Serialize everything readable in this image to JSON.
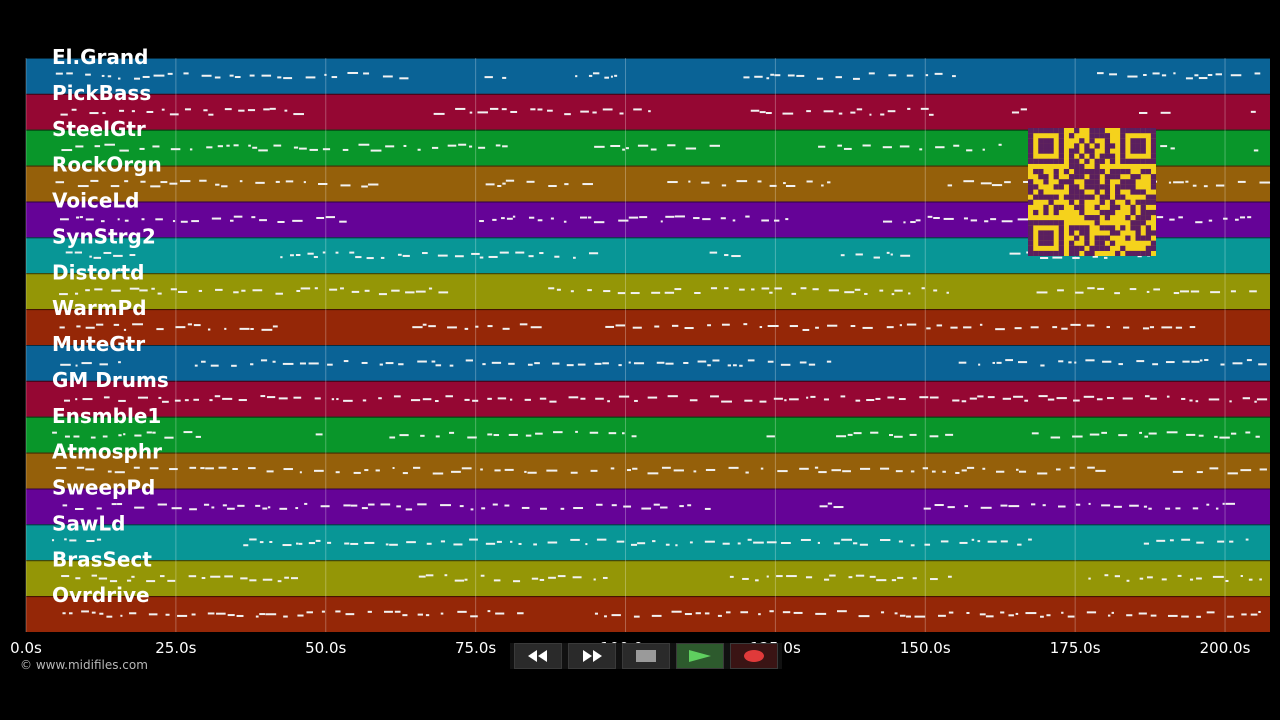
{
  "tracks": [
    {
      "name": "El.Grand",
      "color": "#0a6396"
    },
    {
      "name": "PickBass",
      "color": "#950733"
    },
    {
      "name": "SteelGtr",
      "color": "#09962a"
    },
    {
      "name": "RockOrgn",
      "color": "#95600a"
    },
    {
      "name": "VoiceLd",
      "color": "#650397"
    },
    {
      "name": "SynStrg2",
      "color": "#089696"
    },
    {
      "name": "Distortd",
      "color": "#949606"
    },
    {
      "name": "WarmPd",
      "color": "#952707"
    },
    {
      "name": "MuteGtr",
      "color": "#0a6396"
    },
    {
      "name": "GM Drums",
      "color": "#950733"
    },
    {
      "name": "Ensmble1",
      "color": "#09962a"
    },
    {
      "name": "Atmosphr",
      "color": "#95600a"
    },
    {
      "name": "SweepPd",
      "color": "#650397"
    },
    {
      "name": "SawLd",
      "color": "#089696"
    },
    {
      "name": "BrasSect",
      "color": "#949606"
    },
    {
      "name": "Ovrdrive",
      "color": "#952707"
    }
  ],
  "time_axis": {
    "min_seconds": 0,
    "max_seconds": 207.5,
    "ticks": [
      "0.0s",
      "25.0s",
      "50.0s",
      "75.0s",
      "100.0s",
      "125.0s",
      "150.0s",
      "175.0s",
      "200.0s"
    ],
    "tick_values": [
      0,
      25,
      50,
      75,
      100,
      125,
      150,
      175,
      200
    ]
  },
  "transport": {
    "buttons": [
      {
        "name": "rewind-button",
        "icon": "rewind-icon"
      },
      {
        "name": "fast-forward-button",
        "icon": "fast-forward-icon"
      },
      {
        "name": "stop-button",
        "icon": "stop-icon"
      },
      {
        "name": "play-button",
        "icon": "play-icon"
      },
      {
        "name": "record-button",
        "icon": "record-icon"
      }
    ]
  },
  "credit": "© www.midifiles.com",
  "colors": {
    "background": "#000000",
    "note": "#f2f2f2",
    "qr": "#f5d21c",
    "grid": "#ffffff"
  }
}
